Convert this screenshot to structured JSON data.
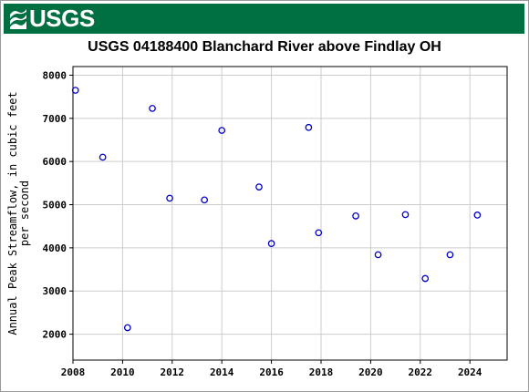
{
  "header": {
    "logo_text": "USGS"
  },
  "chart_data": {
    "type": "scatter",
    "title": "USGS 04188400 Blanchard River above Findlay OH",
    "xlabel": "",
    "ylabel": [
      "Annual Peak Streamflow, in cubic feet",
      "per second"
    ],
    "xlim": [
      2008,
      2025.5
    ],
    "ylim": [
      1400,
      8200
    ],
    "xticks": [
      2008,
      2010,
      2012,
      2014,
      2016,
      2018,
      2020,
      2022,
      2024
    ],
    "yticks": [
      2000,
      3000,
      4000,
      5000,
      6000,
      7000,
      8000
    ],
    "grid": true,
    "marker_color": "#0000cc",
    "series": [
      {
        "points": [
          {
            "x": 2008.1,
            "y": 7650
          },
          {
            "x": 2009.2,
            "y": 6100
          },
          {
            "x": 2010.2,
            "y": 2150
          },
          {
            "x": 2011.2,
            "y": 7230
          },
          {
            "x": 2011.9,
            "y": 5150
          },
          {
            "x": 2013.3,
            "y": 5110
          },
          {
            "x": 2014.0,
            "y": 6720
          },
          {
            "x": 2015.5,
            "y": 5410
          },
          {
            "x": 2016.0,
            "y": 4100
          },
          {
            "x": 2017.5,
            "y": 6790
          },
          {
            "x": 2017.9,
            "y": 4350
          },
          {
            "x": 2019.4,
            "y": 4740
          },
          {
            "x": 2020.3,
            "y": 3840
          },
          {
            "x": 2021.4,
            "y": 4770
          },
          {
            "x": 2022.2,
            "y": 3290
          },
          {
            "x": 2023.2,
            "y": 3840
          },
          {
            "x": 2024.3,
            "y": 4760
          }
        ]
      }
    ]
  }
}
